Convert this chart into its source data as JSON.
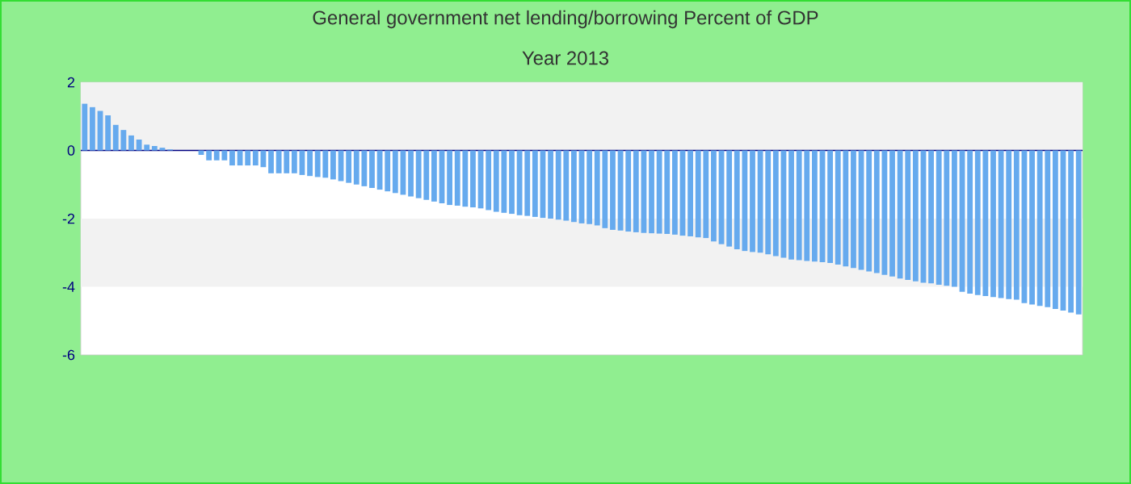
{
  "chart_data": {
    "type": "bar",
    "title": "General government net lending/borrowing  Percent of GDP",
    "subtitle": "Year 2013",
    "categories": [
      null,
      null,
      null,
      null,
      null,
      null,
      null,
      null,
      null,
      null,
      null,
      null,
      null,
      null,
      null,
      null,
      null,
      null,
      null,
      null,
      null,
      null,
      null,
      null,
      null,
      null,
      null,
      null,
      null,
      null,
      null,
      null,
      null,
      null,
      null,
      null,
      null,
      null,
      null,
      null,
      null,
      null,
      null,
      null,
      null,
      null,
      null,
      null,
      null,
      null,
      null,
      null,
      null,
      null,
      null,
      null,
      null,
      null,
      null,
      null,
      null,
      null,
      null,
      null,
      null,
      null,
      null,
      null,
      null,
      null,
      null,
      null,
      null,
      null,
      null,
      null,
      null,
      null,
      null,
      null,
      null,
      null,
      null,
      null,
      null,
      null,
      null,
      null,
      null,
      null,
      null,
      null,
      null,
      null,
      null,
      null,
      null,
      null,
      null,
      null,
      null,
      null,
      null,
      null,
      null,
      null,
      null,
      null,
      null,
      null,
      null,
      null,
      null,
      null,
      null,
      null,
      null,
      null,
      null,
      null,
      null,
      null,
      null,
      null,
      null,
      null,
      null,
      null,
      null
    ],
    "values": [
      1.37,
      1.27,
      1.16,
      1.03,
      0.75,
      0.6,
      0.44,
      0.32,
      0.17,
      0.13,
      0.08,
      0.03,
      0,
      0,
      0,
      -0.13,
      -0.29,
      -0.29,
      -0.29,
      -0.44,
      -0.44,
      -0.44,
      -0.44,
      -0.49,
      -0.67,
      -0.67,
      -0.67,
      -0.67,
      -0.72,
      -0.75,
      -0.78,
      -0.8,
      -0.85,
      -0.9,
      -0.95,
      -1.0,
      -1.05,
      -1.1,
      -1.15,
      -1.2,
      -1.25,
      -1.3,
      -1.35,
      -1.4,
      -1.45,
      -1.5,
      -1.55,
      -1.6,
      -1.62,
      -1.65,
      -1.67,
      -1.7,
      -1.75,
      -1.8,
      -1.83,
      -1.86,
      -1.9,
      -1.92,
      -1.95,
      -1.98,
      -2.0,
      -2.03,
      -2.06,
      -2.1,
      -2.14,
      -2.16,
      -2.2,
      -2.28,
      -2.33,
      -2.35,
      -2.38,
      -2.4,
      -2.42,
      -2.43,
      -2.44,
      -2.45,
      -2.47,
      -2.5,
      -2.52,
      -2.55,
      -2.57,
      -2.67,
      -2.75,
      -2.82,
      -2.9,
      -2.95,
      -2.98,
      -3.0,
      -3.05,
      -3.1,
      -3.15,
      -3.2,
      -3.22,
      -3.24,
      -3.26,
      -3.28,
      -3.3,
      -3.35,
      -3.4,
      -3.45,
      -3.5,
      -3.55,
      -3.6,
      -3.65,
      -3.7,
      -3.76,
      -3.8,
      -3.84,
      -3.88,
      -3.9,
      -3.94,
      -3.97,
      -4.0,
      -4.15,
      -4.2,
      -4.24,
      -4.27,
      -4.3,
      -4.33,
      -4.36,
      -4.38,
      -4.48,
      -4.52,
      -4.56,
      -4.6,
      -4.65,
      -4.7,
      -4.76,
      -4.81
    ],
    "color": "#66aaee",
    "ylim": [
      -6,
      2
    ],
    "yticks": [
      -6,
      -4,
      -2,
      0,
      2
    ],
    "bands": [
      {
        "axis": "y",
        "from": 0,
        "to": 2,
        "color": "#f2f2f2"
      },
      {
        "axis": "y",
        "from": -4,
        "to": -2,
        "color": "#f2f2f2"
      }
    ],
    "ref_lines": [
      {
        "axis": "y",
        "value": 0,
        "color": "#000080"
      }
    ]
  }
}
